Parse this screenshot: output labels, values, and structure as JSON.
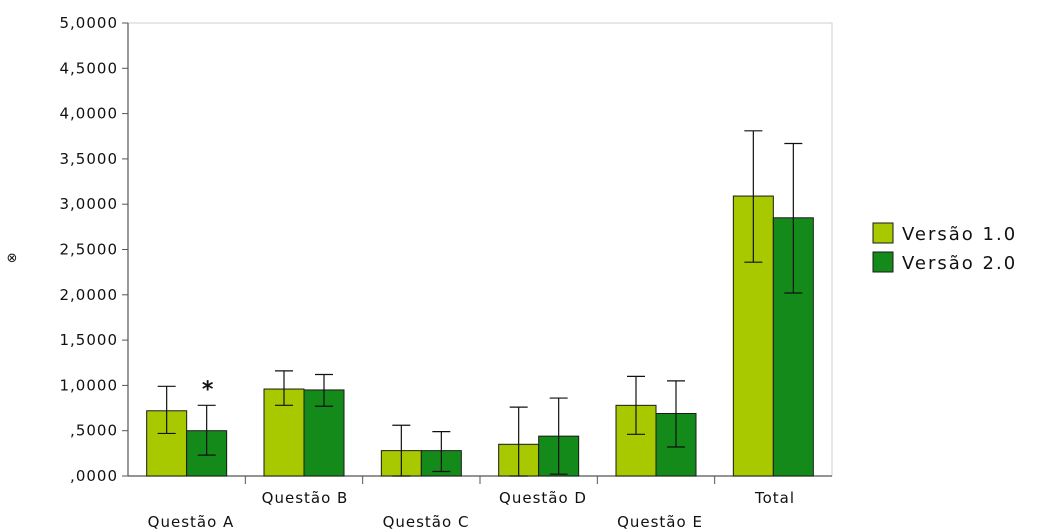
{
  "chart_data": {
    "type": "bar",
    "title": "",
    "xlabel": "",
    "ylabel": "",
    "categories": [
      "Questão A",
      "Questão B",
      "Questão C",
      "Questão D",
      "Questão E",
      "Total"
    ],
    "ylim": [
      0,
      5
    ],
    "yticks": [
      0,
      0.5,
      1,
      1.5,
      2,
      2.5,
      3,
      3.5,
      4,
      4.5,
      5
    ],
    "ytick_labels": [
      ",0000",
      ",5000",
      "1,0000",
      "1,5000",
      "2,0000",
      "2,5000",
      "3,0000",
      "3,5000",
      "4,0000",
      "4,5000",
      "5,0000"
    ],
    "series": [
      {
        "name": "Versão 1.0",
        "color": "#a8c800",
        "values": [
          0.72,
          0.96,
          0.28,
          0.35,
          0.78,
          3.09
        ],
        "err_low": [
          0.47,
          0.78,
          0.0,
          0.0,
          0.46,
          2.36
        ],
        "err_high": [
          0.99,
          1.16,
          0.56,
          0.76,
          1.1,
          3.81
        ]
      },
      {
        "name": "Versão 2.0",
        "color": "#148a1a",
        "values": [
          0.5,
          0.95,
          0.28,
          0.44,
          0.69,
          2.85
        ],
        "err_low": [
          0.23,
          0.77,
          0.05,
          0.02,
          0.32,
          2.02
        ],
        "err_high": [
          0.78,
          1.12,
          0.49,
          0.86,
          1.05,
          3.67
        ]
      }
    ],
    "annotations": [
      {
        "text": "*",
        "category": "Questão A",
        "series": "Versão 2.0"
      }
    ],
    "legend": {
      "position": "right",
      "items": [
        "Versão 1.0",
        "Versão 2.0"
      ]
    },
    "grid": false,
    "side_marker": "⊗"
  }
}
